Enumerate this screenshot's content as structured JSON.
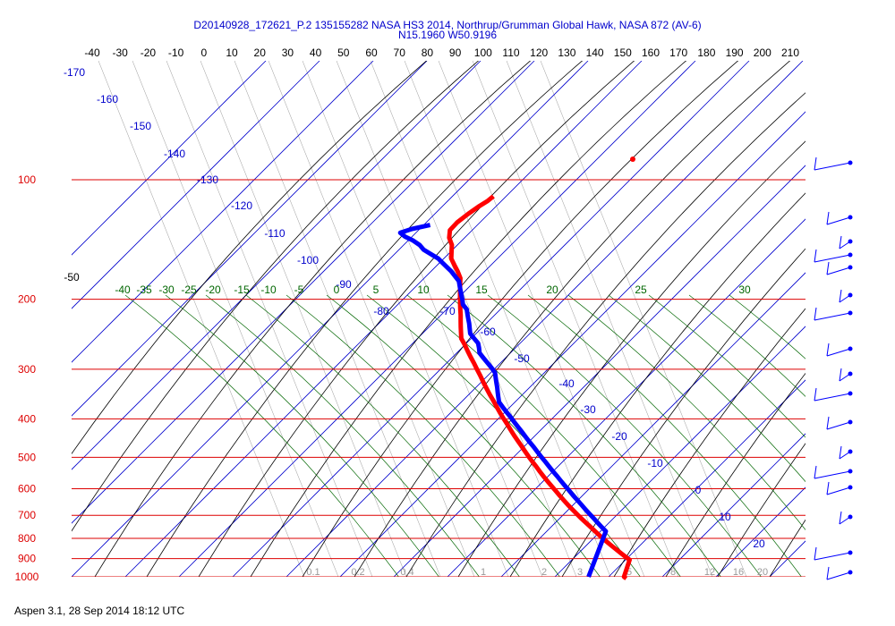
{
  "header": {
    "line1": "D20140928_172621_P.2 135155282 NASA HS3 2014, Northrup/Grumman Global Hawk, NASA 872 (AV-6)",
    "line2": "N15.1960 W50.9196"
  },
  "footer": "Aspen 3.1, 28 Sep 2014  18:12 UTC",
  "chart_data": {
    "type": "skew-t log-p",
    "temperature_axis": {
      "ticks": [
        -40,
        -30,
        -20,
        -10,
        0,
        10,
        20,
        30,
        40,
        50,
        60,
        70,
        80,
        90,
        100,
        110,
        120,
        130,
        140,
        150,
        160,
        170,
        180,
        190,
        200,
        210
      ],
      "position": "top"
    },
    "pressure_axis": {
      "ticks": [
        100,
        200,
        300,
        400,
        500,
        600,
        700,
        800,
        900,
        1000
      ],
      "scale": "log",
      "position": "left"
    },
    "isotherm_labels": [
      -170,
      -160,
      -150,
      -140,
      -130,
      -120,
      -110,
      -100,
      -90,
      -80,
      -70,
      -60,
      -50,
      -40,
      -30,
      -20,
      -10,
      0,
      10,
      20
    ],
    "pressure_level_lines_color": "#dd0000",
    "theta_e_labels": [
      -40,
      -35,
      -30,
      -25,
      -20,
      -15,
      -10,
      -5,
      0,
      5,
      10,
      15,
      20,
      25,
      30
    ],
    "theta_e_extra_label": "-50",
    "mixing_ratio_labels": [
      "0.1",
      "0.2",
      "0.4",
      "1",
      "2",
      "3",
      "5",
      "8",
      "12",
      "16",
      "20"
    ],
    "series": [
      {
        "label": "temperature",
        "color": "#ff0000",
        "x": [
          -75,
          -76,
          -78,
          -80,
          -82,
          -83,
          -82,
          -80,
          -79,
          -78,
          -76,
          -74,
          -72,
          -71,
          -70,
          -69,
          -68,
          -67,
          -66,
          -65,
          -64,
          -63,
          -62,
          -60,
          -58,
          -56,
          -54,
          -52,
          -50,
          -48,
          -46,
          -44,
          -42,
          -40,
          -38,
          -36,
          -34,
          -32,
          -30,
          -28,
          -26,
          -24,
          -22,
          -20,
          -18,
          -16,
          -14,
          -12,
          -10,
          -8,
          -6,
          -4,
          -2,
          0,
          2,
          4,
          6,
          8,
          10,
          12,
          14,
          16,
          18,
          20,
          22,
          24,
          26,
          27,
          28
        ],
        "y": [
          110,
          113,
          117,
          122,
          128,
          134,
          140,
          146,
          152,
          158,
          164,
          170,
          177,
          184,
          191,
          198,
          205,
          212,
          219,
          227,
          235,
          243,
          251,
          260,
          270,
          280,
          290,
          301,
          312,
          324,
          336,
          348,
          360,
          373,
          386,
          399,
          412,
          426,
          440,
          454,
          468,
          483,
          498,
          513,
          528,
          544,
          560,
          576,
          592,
          608,
          625,
          642,
          659,
          676,
          693,
          710,
          727,
          744,
          762,
          780,
          798,
          816,
          834,
          852,
          870,
          888,
          906,
          1000,
          1010
        ]
      },
      {
        "label": "dewpoint",
        "color": "#0000ff",
        "x": [
          -90,
          -95,
          -98,
          -96,
          -93,
          -90,
          -88,
          -85,
          -82,
          -80,
          -78,
          -76,
          -74,
          -72,
          -71,
          -70,
          -69,
          -68,
          -67,
          -65,
          -64,
          -63,
          -62,
          -61,
          -60,
          -58,
          -56,
          -55,
          -54,
          -52,
          -50,
          -48,
          -46,
          -45,
          -44,
          -43,
          -42,
          -41,
          -40,
          -38,
          -36,
          -34,
          -32,
          -30,
          -28,
          -26,
          -24,
          -22,
          -20,
          -18,
          -16,
          -14,
          -12,
          -10,
          -8,
          -6,
          -4,
          -2,
          0,
          2,
          4,
          6,
          8,
          10,
          12,
          14,
          16
        ],
        "y": [
          130,
          133,
          136,
          139,
          142,
          146,
          150,
          154,
          158,
          162,
          166,
          170,
          175,
          180,
          185,
          190,
          195,
          200,
          206,
          212,
          218,
          224,
          230,
          237,
          244,
          251,
          258,
          265,
          273,
          281,
          289,
          297,
          306,
          315,
          324,
          333,
          343,
          353,
          363,
          374,
          385,
          396,
          408,
          420,
          432,
          445,
          458,
          471,
          485,
          499,
          513,
          528,
          543,
          558,
          574,
          590,
          606,
          623,
          640,
          657,
          675,
          693,
          711,
          730,
          749,
          768,
          1000
        ]
      }
    ],
    "wind_barbs": {
      "count": 17,
      "color": "#0000ff"
    },
    "grid": true
  }
}
